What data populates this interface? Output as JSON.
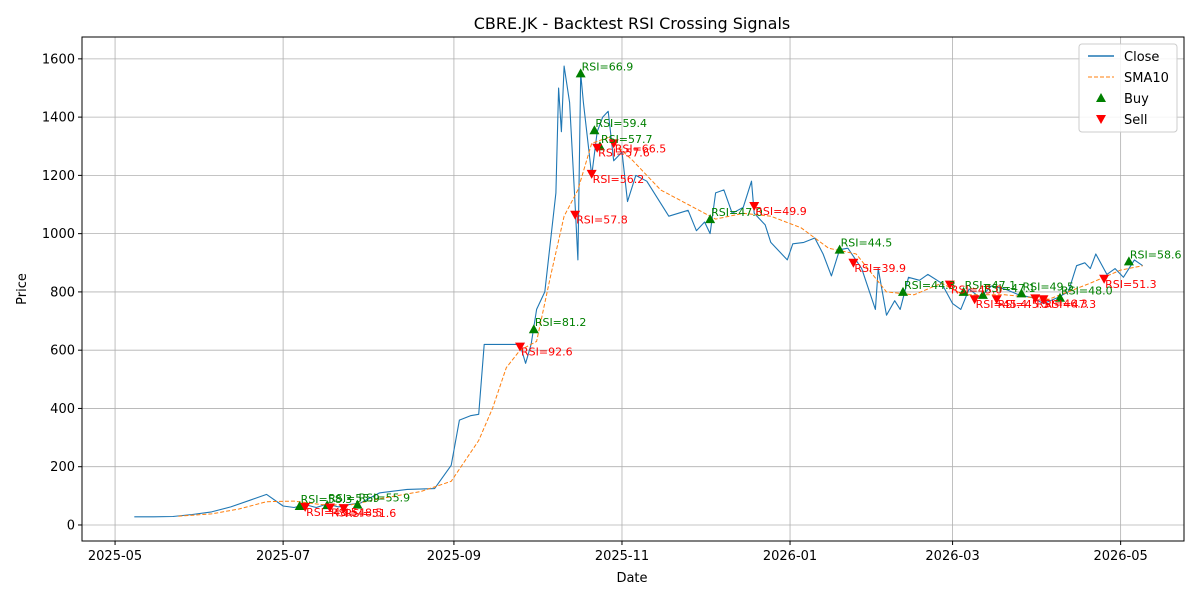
{
  "chart_data": {
    "type": "line",
    "title": "CBRE.JK - Backtest RSI Crossing Signals",
    "xlabel": "Date",
    "ylabel": "Price",
    "ylim": [
      -55,
      1675
    ],
    "xlim": [
      "2025-04-19",
      "2026-05-24"
    ],
    "y_ticks": [
      0,
      200,
      400,
      600,
      800,
      1000,
      1200,
      1400,
      1600
    ],
    "x_ticks": [
      {
        "date": "2025-05-01",
        "label": "2025-05"
      },
      {
        "date": "2025-07-01",
        "label": "2025-07"
      },
      {
        "date": "2025-09-01",
        "label": "2025-09"
      },
      {
        "date": "2025-11-01",
        "label": "2025-11"
      },
      {
        "date": "2026-01-01",
        "label": "2026-01"
      },
      {
        "date": "2026-03-01",
        "label": "2026-03"
      },
      {
        "date": "2026-05-01",
        "label": "2026-05"
      }
    ],
    "grid": true,
    "legend_position": "upper-right",
    "colors": {
      "close": "#1f77b4",
      "sma": "#ff7f0e",
      "buy": "#008000",
      "sell": "#ff0000"
    },
    "series": [
      {
        "name": "Close",
        "kind": "line",
        "points": [
          [
            "2025-05-08",
            28
          ],
          [
            "2025-05-15",
            28
          ],
          [
            "2025-05-22",
            29
          ],
          [
            "2025-05-29",
            36
          ],
          [
            "2025-06-05",
            45
          ],
          [
            "2025-06-12",
            62
          ],
          [
            "2025-06-19",
            85
          ],
          [
            "2025-06-25",
            105
          ],
          [
            "2025-07-01",
            65
          ],
          [
            "2025-07-05",
            60
          ],
          [
            "2025-07-09",
            70
          ],
          [
            "2025-07-13",
            60
          ],
          [
            "2025-07-17",
            72
          ],
          [
            "2025-07-21",
            62
          ],
          [
            "2025-07-25",
            70
          ],
          [
            "2025-07-29",
            75
          ],
          [
            "2025-08-05",
            110
          ],
          [
            "2025-08-15",
            122
          ],
          [
            "2025-08-25",
            125
          ],
          [
            "2025-08-31",
            205
          ],
          [
            "2025-09-03",
            360
          ],
          [
            "2025-09-07",
            375
          ],
          [
            "2025-09-10",
            380
          ],
          [
            "2025-09-12",
            620
          ],
          [
            "2025-09-20",
            620
          ],
          [
            "2025-09-25",
            620
          ],
          [
            "2025-09-27",
            555
          ],
          [
            "2025-09-29",
            620
          ],
          [
            "2025-10-01",
            740
          ],
          [
            "2025-10-04",
            800
          ],
          [
            "2025-10-08",
            1140
          ],
          [
            "2025-10-09",
            1500
          ],
          [
            "2025-10-10",
            1350
          ],
          [
            "2025-10-11",
            1575
          ],
          [
            "2025-10-13",
            1450
          ],
          [
            "2025-10-15",
            1100
          ],
          [
            "2025-10-16",
            910
          ],
          [
            "2025-10-17",
            1550
          ],
          [
            "2025-10-18",
            1450
          ],
          [
            "2025-10-21",
            1200
          ],
          [
            "2025-10-23",
            1350
          ],
          [
            "2025-10-25",
            1400
          ],
          [
            "2025-10-27",
            1420
          ],
          [
            "2025-10-29",
            1250
          ],
          [
            "2025-11-01",
            1280
          ],
          [
            "2025-11-03",
            1110
          ],
          [
            "2025-11-06",
            1200
          ],
          [
            "2025-11-10",
            1180
          ],
          [
            "2025-11-18",
            1060
          ],
          [
            "2025-11-25",
            1080
          ],
          [
            "2025-11-28",
            1010
          ],
          [
            "2025-12-01",
            1040
          ],
          [
            "2025-12-03",
            1000
          ],
          [
            "2025-12-05",
            1140
          ],
          [
            "2025-12-08",
            1150
          ],
          [
            "2025-12-11",
            1070
          ],
          [
            "2025-12-15",
            1090
          ],
          [
            "2025-12-18",
            1180
          ],
          [
            "2025-12-19",
            1070
          ],
          [
            "2025-12-23",
            1030
          ],
          [
            "2025-12-25",
            970
          ],
          [
            "2025-12-31",
            910
          ],
          [
            "2026-01-02",
            965
          ],
          [
            "2026-01-06",
            970
          ],
          [
            "2026-01-10",
            985
          ],
          [
            "2026-01-13",
            930
          ],
          [
            "2026-01-16",
            855
          ],
          [
            "2026-01-19",
            945
          ],
          [
            "2026-01-22",
            950
          ],
          [
            "2026-01-27",
            880
          ],
          [
            "2026-02-01",
            740
          ],
          [
            "2026-02-02",
            880
          ],
          [
            "2026-02-05",
            720
          ],
          [
            "2026-02-08",
            770
          ],
          [
            "2026-02-10",
            740
          ],
          [
            "2026-02-13",
            850
          ],
          [
            "2026-02-17",
            840
          ],
          [
            "2026-02-20",
            860
          ],
          [
            "2026-02-25",
            830
          ],
          [
            "2026-03-01",
            760
          ],
          [
            "2026-03-04",
            740
          ],
          [
            "2026-03-07",
            810
          ],
          [
            "2026-03-11",
            780
          ],
          [
            "2026-03-15",
            820
          ],
          [
            "2026-03-20",
            810
          ],
          [
            "2026-03-25",
            790
          ],
          [
            "2026-03-30",
            780
          ],
          [
            "2026-04-03",
            760
          ],
          [
            "2026-04-08",
            780
          ],
          [
            "2026-04-12",
            800
          ],
          [
            "2026-04-15",
            890
          ],
          [
            "2026-04-18",
            900
          ],
          [
            "2026-04-20",
            880
          ],
          [
            "2026-04-22",
            930
          ],
          [
            "2026-04-26",
            860
          ],
          [
            "2026-04-29",
            880
          ],
          [
            "2026-05-02",
            850
          ],
          [
            "2026-05-06",
            910
          ],
          [
            "2026-05-09",
            890
          ]
        ]
      },
      {
        "name": "SMA10",
        "kind": "dashed-line",
        "points": [
          [
            "2025-05-24",
            30
          ],
          [
            "2025-06-05",
            38
          ],
          [
            "2025-06-15",
            55
          ],
          [
            "2025-06-25",
            80
          ],
          [
            "2025-07-05",
            82
          ],
          [
            "2025-07-15",
            70
          ],
          [
            "2025-07-25",
            68
          ],
          [
            "2025-08-05",
            90
          ],
          [
            "2025-08-20",
            115
          ],
          [
            "2025-08-31",
            150
          ],
          [
            "2025-09-10",
            290
          ],
          [
            "2025-09-15",
            400
          ],
          [
            "2025-09-20",
            540
          ],
          [
            "2025-09-25",
            600
          ],
          [
            "2025-10-01",
            630
          ],
          [
            "2025-10-06",
            850
          ],
          [
            "2025-10-11",
            1060
          ],
          [
            "2025-10-16",
            1150
          ],
          [
            "2025-10-21",
            1310
          ],
          [
            "2025-10-27",
            1330
          ],
          [
            "2025-11-05",
            1250
          ],
          [
            "2025-11-15",
            1150
          ],
          [
            "2025-11-25",
            1100
          ],
          [
            "2025-12-05",
            1050
          ],
          [
            "2025-12-15",
            1070
          ],
          [
            "2025-12-25",
            1060
          ],
          [
            "2026-01-05",
            1020
          ],
          [
            "2026-01-15",
            950
          ],
          [
            "2026-01-25",
            930
          ],
          [
            "2026-02-05",
            800
          ],
          [
            "2026-02-15",
            790
          ],
          [
            "2026-02-25",
            830
          ],
          [
            "2026-03-05",
            790
          ],
          [
            "2026-03-20",
            790
          ],
          [
            "2026-04-05",
            775
          ],
          [
            "2026-04-20",
            830
          ],
          [
            "2026-05-01",
            875
          ],
          [
            "2026-05-09",
            890
          ]
        ]
      }
    ],
    "buy_signals": [
      {
        "date": "2025-07-07",
        "price": 65,
        "label": "RSI=58.3"
      },
      {
        "date": "2025-07-17",
        "price": 68,
        "label": "RSI=55.9"
      },
      {
        "date": "2025-07-28",
        "price": 70,
        "label": "RSI=55.9"
      },
      {
        "date": "2025-09-30",
        "price": 672,
        "label": "RSI=81.2"
      },
      {
        "date": "2025-10-17",
        "price": 1550,
        "label": "RSI=66.9"
      },
      {
        "date": "2025-10-22",
        "price": 1355,
        "label": "RSI=59.4"
      },
      {
        "date": "2025-10-24",
        "price": 1300,
        "label": "RSI=57.7"
      },
      {
        "date": "2025-12-03",
        "price": 1050,
        "label": "RSI=47.0"
      },
      {
        "date": "2026-01-19",
        "price": 945,
        "label": "RSI=44.5"
      },
      {
        "date": "2026-02-11",
        "price": 800,
        "label": "RSI=44.3"
      },
      {
        "date": "2026-03-05",
        "price": 800,
        "label": "RSI=47.1"
      },
      {
        "date": "2026-03-12",
        "price": 790,
        "label": "RSI=47.1"
      },
      {
        "date": "2026-03-26",
        "price": 795,
        "label": "RSI=49.5"
      },
      {
        "date": "2026-04-09",
        "price": 780,
        "label": "RSI=48.0"
      },
      {
        "date": "2026-05-04",
        "price": 905,
        "label": "RSI=58.6"
      }
    ],
    "sell_signals": [
      {
        "date": "2025-07-09",
        "price": 62,
        "label": "RSI=48.5"
      },
      {
        "date": "2025-07-18",
        "price": 60,
        "label": "RSI=48.5"
      },
      {
        "date": "2025-07-23",
        "price": 58,
        "label": "RSI=51.6"
      },
      {
        "date": "2025-09-25",
        "price": 612,
        "label": "RSI=92.6"
      },
      {
        "date": "2025-10-15",
        "price": 1065,
        "label": "RSI=57.8"
      },
      {
        "date": "2025-10-21",
        "price": 1205,
        "label": "RSI=56.2"
      },
      {
        "date": "2025-10-23",
        "price": 1295,
        "label": "RSI=57.6"
      },
      {
        "date": "2025-10-29",
        "price": 1310,
        "label": "RSI=66.5"
      },
      {
        "date": "2025-12-19",
        "price": 1095,
        "label": "RSI=49.9"
      },
      {
        "date": "2026-01-24",
        "price": 900,
        "label": "RSI=39.9"
      },
      {
        "date": "2026-02-28",
        "price": 825,
        "label": "RSI=45.0"
      },
      {
        "date": "2026-03-09",
        "price": 775,
        "label": "RSI=45.4"
      },
      {
        "date": "2026-03-17",
        "price": 775,
        "label": "RSI=45.5"
      },
      {
        "date": "2026-03-31",
        "price": 778,
        "label": "RSI=46.3"
      },
      {
        "date": "2026-04-03",
        "price": 775,
        "label": "RSI=47.3"
      },
      {
        "date": "2026-04-25",
        "price": 845,
        "label": "RSI=51.3"
      }
    ],
    "legend": [
      {
        "label": "Close",
        "marker": "line"
      },
      {
        "label": "SMA10",
        "marker": "dashed-line"
      },
      {
        "label": "Buy",
        "marker": "triangle-up"
      },
      {
        "label": "Sell",
        "marker": "triangle-down"
      }
    ]
  }
}
